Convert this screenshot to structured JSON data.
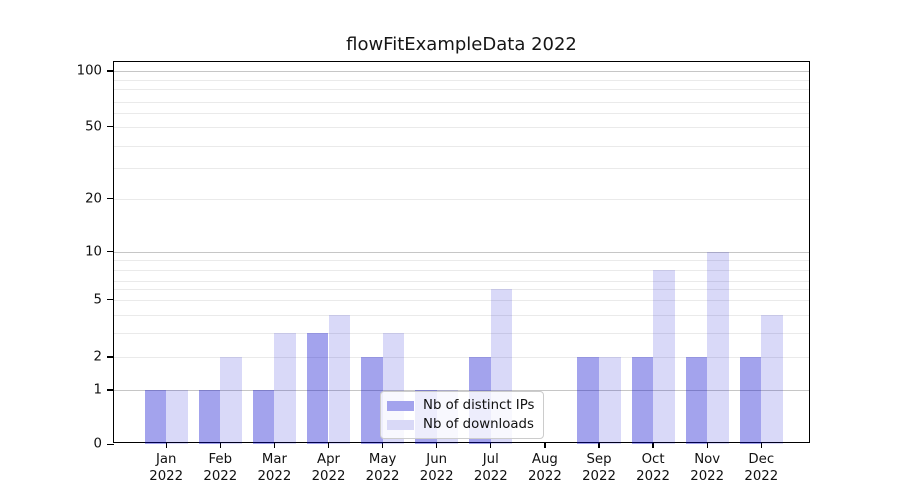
{
  "chart_data": {
    "type": "bar",
    "title": "flowFitExampleData 2022",
    "categories": [
      "Jan",
      "Feb",
      "Mar",
      "Apr",
      "May",
      "Jun",
      "Jul",
      "Aug",
      "Sep",
      "Oct",
      "Nov",
      "Dec"
    ],
    "x_tick_line2": "2022",
    "series": [
      {
        "name": "Nb of distinct IPs",
        "color": "rgba(0,0,205,0.36)",
        "legend_color": "#a3a3ed",
        "values": [
          1,
          1,
          1,
          3,
          2,
          1,
          2,
          0,
          2,
          2,
          2,
          2
        ]
      },
      {
        "name": "Nb of downloads",
        "color": "rgba(0,0,205,0.15)",
        "legend_color": "#d9d9f7",
        "values": [
          1,
          2,
          3,
          4,
          3,
          1,
          6,
          0,
          2,
          8,
          10,
          4
        ]
      }
    ],
    "yticks": [
      100,
      50,
      20,
      10,
      5,
      2,
      1,
      0
    ],
    "ylim": [
      0,
      112
    ],
    "yscale": "log-like (0,1,2,5,10,20,50,100)",
    "xlabel": "",
    "ylabel": "",
    "grid": "horizontal major + minor",
    "legend": {
      "entries": [
        "Nb of distinct IPs",
        "Nb of downloads"
      ],
      "position": "inside lower-center"
    },
    "colors": {
      "grid_major": "#c6c6c6",
      "grid_minor": "#eaeaea",
      "axis": "#000000",
      "background": "#ffffff"
    }
  }
}
